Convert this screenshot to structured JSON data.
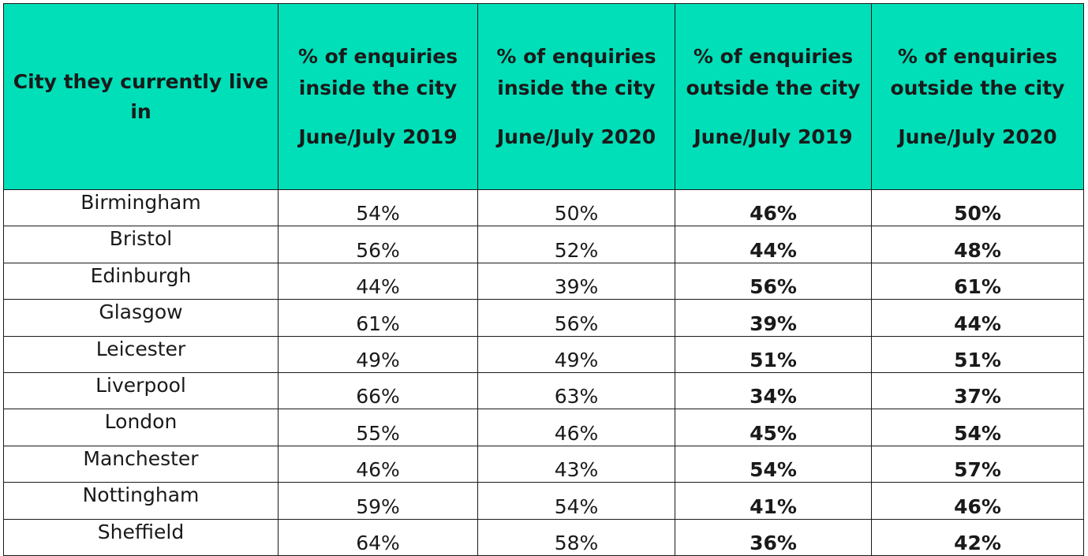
{
  "table": {
    "header": {
      "city": "City they currently live in",
      "columns": [
        {
          "label": "% of enquiries inside the city",
          "period": "June/July 2019"
        },
        {
          "label": "% of enquiries inside the city",
          "period": "June/July 2020"
        },
        {
          "label": "% of enquiries outside the city",
          "period": "June/July 2019"
        },
        {
          "label": "% of enquiries outside the city",
          "period": "June/July 2020"
        }
      ]
    },
    "rows": [
      {
        "city": "Birmingham",
        "inside_2019": "54%",
        "inside_2020": "50%",
        "outside_2019": "46%",
        "outside_2020": "50%"
      },
      {
        "city": "Bristol",
        "inside_2019": "56%",
        "inside_2020": "52%",
        "outside_2019": "44%",
        "outside_2020": "48%"
      },
      {
        "city": "Edinburgh",
        "inside_2019": "44%",
        "inside_2020": "39%",
        "outside_2019": "56%",
        "outside_2020": "61%"
      },
      {
        "city": "Glasgow",
        "inside_2019": "61%",
        "inside_2020": "56%",
        "outside_2019": "39%",
        "outside_2020": "44%"
      },
      {
        "city": "Leicester",
        "inside_2019": "49%",
        "inside_2020": "49%",
        "outside_2019": "51%",
        "outside_2020": "51%"
      },
      {
        "city": "Liverpool",
        "inside_2019": "66%",
        "inside_2020": "63%",
        "outside_2019": "34%",
        "outside_2020": "37%"
      },
      {
        "city": "London",
        "inside_2019": "55%",
        "inside_2020": "46%",
        "outside_2019": "45%",
        "outside_2020": "54%"
      },
      {
        "city": "Manchester",
        "inside_2019": "46%",
        "inside_2020": "43%",
        "outside_2019": "54%",
        "outside_2020": "57%"
      },
      {
        "city": "Nottingham",
        "inside_2019": "59%",
        "inside_2020": "54%",
        "outside_2019": "41%",
        "outside_2020": "46%"
      },
      {
        "city": "Sheffield",
        "inside_2019": "64%",
        "inside_2020": "58%",
        "outside_2019": "36%",
        "outside_2020": "42%"
      }
    ]
  },
  "colors": {
    "header_background": "#00dfb8",
    "border": "#1a1a1a",
    "text": "#1a1a1a"
  }
}
